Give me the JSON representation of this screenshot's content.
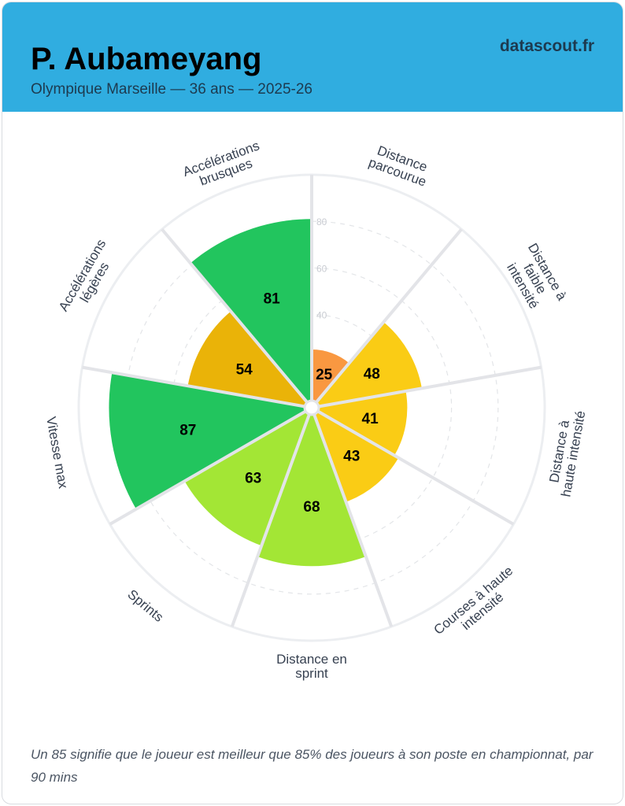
{
  "header": {
    "player": "P. Aubameyang",
    "subtitle": "Olympique Marseille — 36 ans — 2025-26",
    "brand": "datascout.fr"
  },
  "chart_data": {
    "type": "polar-bar",
    "categories": [
      "Distance parcourue",
      "Distance à faible intensité",
      "Distance à haute intensité",
      "Courses à haute intensité",
      "Distance en sprint",
      "Sprints",
      "Vitesse max",
      "Accélérations légères",
      "Accélérations brusques"
    ],
    "label_lines": [
      [
        "Distance",
        "parcourue"
      ],
      [
        "Distance à",
        "faible",
        "intensité"
      ],
      [
        "Distance à",
        "haute intensité"
      ],
      [
        "Courses à haute",
        "intensité"
      ],
      [
        "Distance en",
        "sprint"
      ],
      [
        "Sprints"
      ],
      [
        "Vitesse max"
      ],
      [
        "Accélérations",
        "légères"
      ],
      [
        "Accélérations",
        "brusques"
      ]
    ],
    "values": [
      25,
      48,
      41,
      43,
      68,
      63,
      87,
      54,
      81
    ],
    "colors": [
      "#f99841",
      "#facc15",
      "#facc15",
      "#facc15",
      "#a3e635",
      "#a3e635",
      "#22c55e",
      "#eab308",
      "#22c55e"
    ],
    "rlim": [
      0,
      100
    ],
    "rticks": [
      40,
      60,
      80
    ],
    "rtick_labels": [
      "40",
      "60",
      "80"
    ]
  },
  "footer": {
    "note": "Un 85 signifie que le joueur est meilleur que 85% des joueurs à son poste en championnat, par 90 mins"
  }
}
